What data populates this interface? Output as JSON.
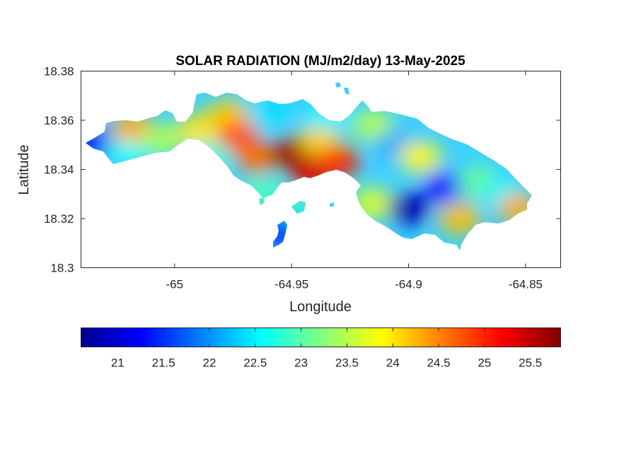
{
  "chart_data": {
    "type": "heatmap",
    "title": "SOLAR RADIATION (MJ/m2/day) 13-May-2025",
    "xlabel": "Longitude",
    "ylabel": "Latitude",
    "xlim": [
      -65.04,
      -64.835
    ],
    "ylim": [
      18.3,
      18.38
    ],
    "x_ticks": [
      {
        "value": -65.0,
        "label": "-65"
      },
      {
        "value": -64.95,
        "label": "-64.95"
      },
      {
        "value": -64.9,
        "label": "-64.9"
      },
      {
        "value": -64.85,
        "label": "-64.85"
      }
    ],
    "y_ticks": [
      {
        "value": 18.3,
        "label": "18.3"
      },
      {
        "value": 18.32,
        "label": "18.32"
      },
      {
        "value": 18.34,
        "label": "18.34"
      },
      {
        "value": 18.36,
        "label": "18.36"
      },
      {
        "value": 18.38,
        "label": "18.38"
      }
    ],
    "grid": false,
    "colormap": "jet",
    "colorbar": {
      "position": "bottom",
      "range": [
        20.6,
        25.83
      ],
      "ticks": [
        {
          "value": 21,
          "label": "21"
        },
        {
          "value": 21.5,
          "label": "21.5"
        },
        {
          "value": 22,
          "label": "22"
        },
        {
          "value": 22.5,
          "label": "22.5"
        },
        {
          "value": 23,
          "label": "23"
        },
        {
          "value": 23.5,
          "label": "23.5"
        },
        {
          "value": 24,
          "label": "24"
        },
        {
          "value": 24.5,
          "label": "24.5"
        },
        {
          "value": 25,
          "label": "25"
        },
        {
          "value": 25.5,
          "label": "25.5"
        }
      ]
    },
    "field_samples": [
      {
        "lon": -65.035,
        "lat": 18.351,
        "value": 21.2
      },
      {
        "lon": -65.02,
        "lat": 18.348,
        "value": 22.6
      },
      {
        "lon": -65.018,
        "lat": 18.357,
        "value": 24.3
      },
      {
        "lon": -65.005,
        "lat": 18.352,
        "value": 23.4
      },
      {
        "lon": -64.99,
        "lat": 18.356,
        "value": 24.0
      },
      {
        "lon": -64.985,
        "lat": 18.345,
        "value": 22.7
      },
      {
        "lon": -64.977,
        "lat": 18.362,
        "value": 24.1
      },
      {
        "lon": -64.973,
        "lat": 18.354,
        "value": 24.8
      },
      {
        "lon": -64.965,
        "lat": 18.345,
        "value": 24.6
      },
      {
        "lon": -64.96,
        "lat": 18.362,
        "value": 22.4
      },
      {
        "lon": -64.95,
        "lat": 18.347,
        "value": 25.7
      },
      {
        "lon": -64.942,
        "lat": 18.338,
        "value": 25.4
      },
      {
        "lon": -64.938,
        "lat": 18.352,
        "value": 24.1
      },
      {
        "lon": -64.935,
        "lat": 18.362,
        "value": 22.5
      },
      {
        "lon": -64.93,
        "lat": 18.343,
        "value": 25.0
      },
      {
        "lon": -64.915,
        "lat": 18.358,
        "value": 23.5
      },
      {
        "lon": -64.915,
        "lat": 18.326,
        "value": 23.7
      },
      {
        "lon": -64.905,
        "lat": 18.35,
        "value": 22.1
      },
      {
        "lon": -64.9,
        "lat": 18.324,
        "value": 20.8
      },
      {
        "lon": -64.895,
        "lat": 18.345,
        "value": 23.9
      },
      {
        "lon": -64.885,
        "lat": 18.333,
        "value": 21.3
      },
      {
        "lon": -64.878,
        "lat": 18.32,
        "value": 24.2
      },
      {
        "lon": -64.87,
        "lat": 18.335,
        "value": 23.1
      },
      {
        "lon": -64.86,
        "lat": 18.33,
        "value": 22.5
      },
      {
        "lon": -64.853,
        "lat": 18.324,
        "value": 24.3
      },
      {
        "lon": -64.962,
        "lat": 18.33,
        "value": 22.9
      },
      {
        "lon": -64.95,
        "lat": 18.323,
        "value": 22.8
      },
      {
        "lon": -64.955,
        "lat": 18.315,
        "value": 21.4
      }
    ]
  }
}
